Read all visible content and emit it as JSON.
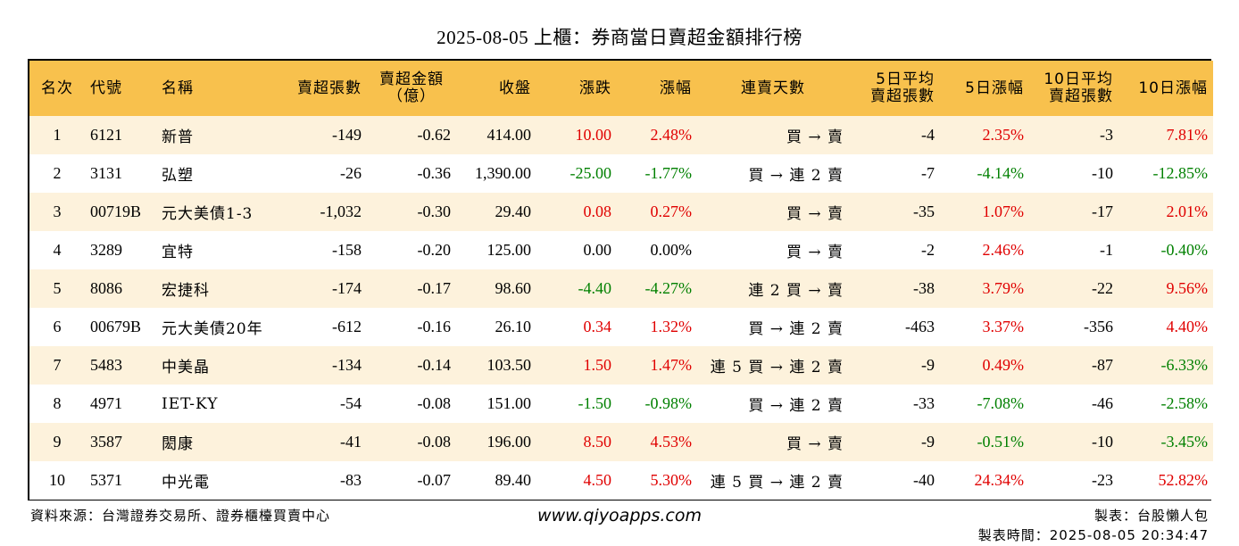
{
  "title": "2025-08-05 上櫃：券商當日賣超金額排行榜",
  "headers": {
    "rank": "名次",
    "code": "代號",
    "name": "名稱",
    "sell_shares": "賣超張數",
    "sell_amount_line1": "賣超金額",
    "sell_amount_line2": "（億）",
    "close": "收盤",
    "change": "漲跌",
    "change_pct": "漲幅",
    "streak": "連賣天數",
    "avg5_line1": "5日平均",
    "avg5_line2": "賣超張數",
    "pct5": "5日漲幅",
    "avg10_line1": "10日平均",
    "avg10_line2": "賣超張數",
    "pct10": "10日漲幅"
  },
  "rows": [
    {
      "rank": "1",
      "code": "6121",
      "name": "新普",
      "sell_shares": "-149",
      "sell_amount": "-0.62",
      "close": "414.00",
      "change": "10.00",
      "change_color": "pos",
      "change_pct": "2.48%",
      "change_pct_color": "pos",
      "streak": "買 → 賣",
      "avg5": "-4",
      "pct5": "2.35%",
      "pct5_color": "pos",
      "avg10": "-3",
      "pct10": "7.81%",
      "pct10_color": "pos"
    },
    {
      "rank": "2",
      "code": "3131",
      "name": "弘塑",
      "sell_shares": "-26",
      "sell_amount": "-0.36",
      "close": "1,390.00",
      "change": "-25.00",
      "change_color": "neg",
      "change_pct": "-1.77%",
      "change_pct_color": "neg",
      "streak": "買 → 連 2 賣",
      "avg5": "-7",
      "pct5": "-4.14%",
      "pct5_color": "neg",
      "avg10": "-10",
      "pct10": "-12.85%",
      "pct10_color": "neg"
    },
    {
      "rank": "3",
      "code": "00719B",
      "name": "元大美債1-3",
      "sell_shares": "-1,032",
      "sell_amount": "-0.30",
      "close": "29.40",
      "change": "0.08",
      "change_color": "pos",
      "change_pct": "0.27%",
      "change_pct_color": "pos",
      "streak": "買 → 賣",
      "avg5": "-35",
      "pct5": "1.07%",
      "pct5_color": "pos",
      "avg10": "-17",
      "pct10": "2.01%",
      "pct10_color": "pos"
    },
    {
      "rank": "4",
      "code": "3289",
      "name": "宜特",
      "sell_shares": "-158",
      "sell_amount": "-0.20",
      "close": "125.00",
      "change": "0.00",
      "change_color": "zero",
      "change_pct": "0.00%",
      "change_pct_color": "zero",
      "streak": "買 → 賣",
      "avg5": "-2",
      "pct5": "2.46%",
      "pct5_color": "pos",
      "avg10": "-1",
      "pct10": "-0.40%",
      "pct10_color": "neg"
    },
    {
      "rank": "5",
      "code": "8086",
      "name": "宏捷科",
      "sell_shares": "-174",
      "sell_amount": "-0.17",
      "close": "98.60",
      "change": "-4.40",
      "change_color": "neg",
      "change_pct": "-4.27%",
      "change_pct_color": "neg",
      "streak": "連 2 買 → 賣",
      "avg5": "-38",
      "pct5": "3.79%",
      "pct5_color": "pos",
      "avg10": "-22",
      "pct10": "9.56%",
      "pct10_color": "pos"
    },
    {
      "rank": "6",
      "code": "00679B",
      "name": "元大美債20年",
      "sell_shares": "-612",
      "sell_amount": "-0.16",
      "close": "26.10",
      "change": "0.34",
      "change_color": "pos",
      "change_pct": "1.32%",
      "change_pct_color": "pos",
      "streak": "買 → 連 2 賣",
      "avg5": "-463",
      "pct5": "3.37%",
      "pct5_color": "pos",
      "avg10": "-356",
      "pct10": "4.40%",
      "pct10_color": "pos"
    },
    {
      "rank": "7",
      "code": "5483",
      "name": "中美晶",
      "sell_shares": "-134",
      "sell_amount": "-0.14",
      "close": "103.50",
      "change": "1.50",
      "change_color": "pos",
      "change_pct": "1.47%",
      "change_pct_color": "pos",
      "streak": "連 5 買 → 連 2 賣",
      "avg5": "-9",
      "pct5": "0.49%",
      "pct5_color": "pos",
      "avg10": "-87",
      "pct10": "-6.33%",
      "pct10_color": "neg"
    },
    {
      "rank": "8",
      "code": "4971",
      "name": "IET-KY",
      "sell_shares": "-54",
      "sell_amount": "-0.08",
      "close": "151.00",
      "change": "-1.50",
      "change_color": "neg",
      "change_pct": "-0.98%",
      "change_pct_color": "neg",
      "streak": "買 → 連 2 賣",
      "avg5": "-33",
      "pct5": "-7.08%",
      "pct5_color": "neg",
      "avg10": "-46",
      "pct10": "-2.58%",
      "pct10_color": "neg"
    },
    {
      "rank": "9",
      "code": "3587",
      "name": "閎康",
      "sell_shares": "-41",
      "sell_amount": "-0.08",
      "close": "196.00",
      "change": "8.50",
      "change_color": "pos",
      "change_pct": "4.53%",
      "change_pct_color": "pos",
      "streak": "買 → 賣",
      "avg5": "-9",
      "pct5": "-0.51%",
      "pct5_color": "neg",
      "avg10": "-10",
      "pct10": "-3.45%",
      "pct10_color": "neg"
    },
    {
      "rank": "10",
      "code": "5371",
      "name": "中光電",
      "sell_shares": "-83",
      "sell_amount": "-0.07",
      "close": "89.40",
      "change": "4.50",
      "change_color": "pos",
      "change_pct": "5.30%",
      "change_pct_color": "pos",
      "streak": "連 5 買 → 連 2 賣",
      "avg5": "-40",
      "pct5": "24.34%",
      "pct5_color": "pos",
      "avg10": "-23",
      "pct10": "52.82%",
      "pct10_color": "pos"
    }
  ],
  "footer": {
    "source": "資料來源：台灣證券交易所、證券櫃檯買賣中心",
    "website": "www.qiyoapps.com",
    "author": "製表：台股懶人包",
    "time": "製表時間：2025-08-05 20:34:47"
  },
  "colors": {
    "header_bg": "#f8c14d",
    "row_alt_bg": "#fdf2dc",
    "positive": "#e00000",
    "negative": "#008000"
  }
}
